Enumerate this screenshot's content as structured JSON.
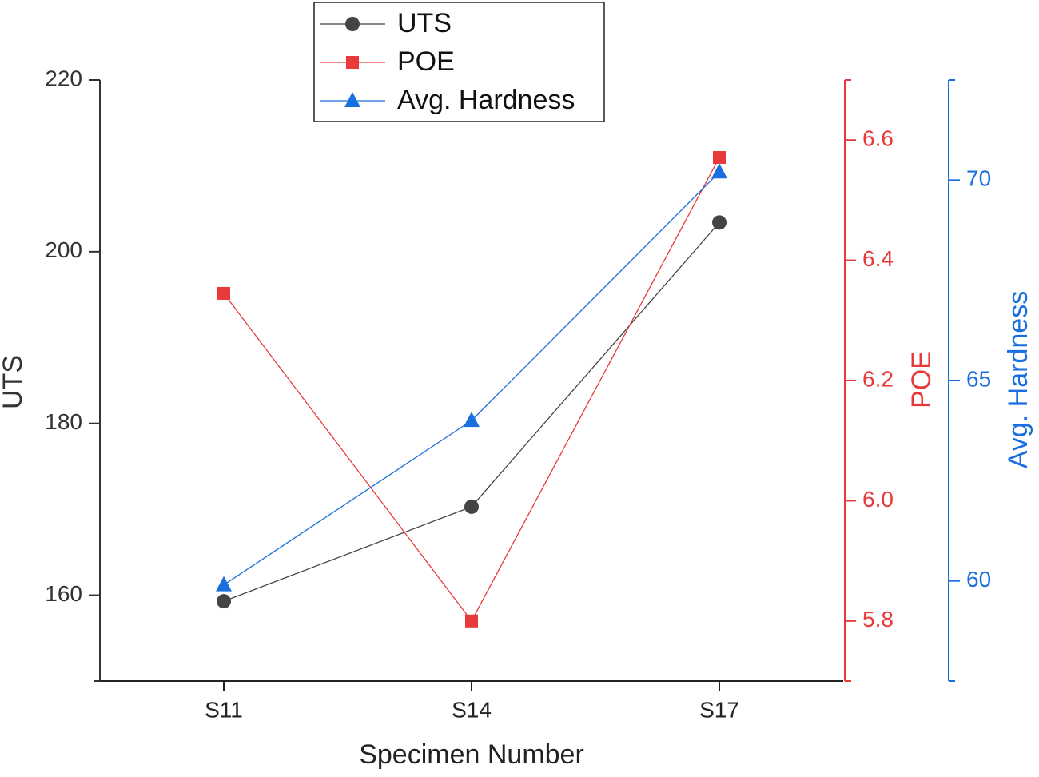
{
  "chart_data": {
    "type": "line",
    "xlabel": "Specimen Number",
    "ylabel": "UTS",
    "y2label": "POE",
    "y3label": "Avg. Hardness",
    "categories": [
      "S11",
      "S14",
      "S17"
    ],
    "series": [
      {
        "name": "UTS",
        "color": "#444444",
        "marker": "circle",
        "axis": "y",
        "values": [
          159.3,
          170.3,
          203.4
        ]
      },
      {
        "name": "POE",
        "color": "#e83a3a",
        "marker": "square",
        "axis": "y2",
        "values": [
          6.345,
          5.8,
          6.571
        ]
      },
      {
        "name": "Avg. Hardness",
        "color": "#1a6fdf",
        "marker": "triangle",
        "axis": "y3",
        "values": [
          59.9,
          64.0,
          70.2
        ]
      }
    ],
    "ylim": [
      150,
      220
    ],
    "yticks": [
      160,
      180,
      200,
      220
    ],
    "y2lim": [
      5.7,
      6.7
    ],
    "y2ticks": [
      5.8,
      {
        "value": 6,
        "label": "6.0"
      },
      6.2,
      6.4,
      6.6
    ],
    "y3lim": [
      57.5,
      72.5
    ],
    "y3ticks": [
      60,
      65,
      70
    ],
    "grid": false
  }
}
